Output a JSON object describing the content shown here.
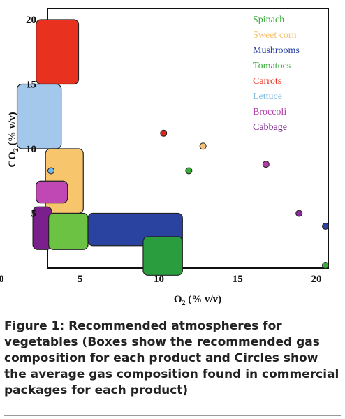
{
  "chart_data": {
    "type": "scatter",
    "title": "",
    "xlabel": "O",
    "xlabel_sub": "2",
    "xlabel_suffix": " (% v/v)",
    "ylabel": "CO",
    "ylabel_sub": "2",
    "ylabel_suffix": " (% v/v)",
    "xlim": [
      0,
      21
    ],
    "ylim": [
      0,
      20
    ],
    "x_ticks": [
      0,
      5,
      10,
      15,
      20
    ],
    "y_ticks": [
      5,
      10,
      15,
      20
    ],
    "grid": false,
    "legend_position": "top-right",
    "legend": [
      {
        "name": "Spinach",
        "color": "#3aaa3a"
      },
      {
        "name": "Sweet corn",
        "color": "#f5c06a"
      },
      {
        "name": "Mushrooms",
        "color": "#2a43a0"
      },
      {
        "name": "Tomatoes",
        "color": "#3aaa3a"
      },
      {
        "name": "Carrots",
        "color": "#e8321f"
      },
      {
        "name": "Lettuce",
        "color": "#7fb8e0"
      },
      {
        "name": "Broccoli",
        "color": "#b03ca8"
      },
      {
        "name": "Cabbage",
        "color": "#7a1f8c"
      }
    ],
    "boxes": [
      {
        "product": "Carrots",
        "o2": [
          2.2,
          4.9
        ],
        "co2": [
          15,
          20
        ],
        "color": "#e8321f"
      },
      {
        "product": "Lettuce",
        "o2": [
          1,
          3.8
        ],
        "co2": [
          10,
          15
        ],
        "color": "#a4c8ec"
      },
      {
        "product": "Sweet corn",
        "o2": [
          2.8,
          5.2
        ],
        "co2": [
          5,
          10
        ],
        "color": "#f7c66c"
      },
      {
        "product": "Broccoli",
        "o2": [
          2.2,
          4.2
        ],
        "co2": [
          5.8,
          7.5
        ],
        "color": "#bf48b4"
      },
      {
        "product": "Cabbage",
        "o2": [
          2,
          3.2
        ],
        "co2": [
          2.2,
          5.5
        ],
        "color": "#7a1f8c"
      },
      {
        "product": "Tomatoes",
        "o2": [
          3,
          5.5
        ],
        "co2": [
          2.2,
          5
        ],
        "color": "#6cc242"
      },
      {
        "product": "Mushrooms",
        "o2": [
          5.5,
          11.5
        ],
        "co2": [
          2.5,
          5
        ],
        "color": "#2a43a0"
      },
      {
        "product": "Spinach",
        "o2": [
          9,
          11.5
        ],
        "co2": [
          0.2,
          3.2
        ],
        "color": "#2a9e3e"
      }
    ],
    "points": [
      {
        "product": "Lettuce",
        "x": 0.6,
        "y": 8.3,
        "color": "#6fb6e6"
      },
      {
        "product": "Carrots",
        "x": 10.3,
        "y": 11.2,
        "color": "#e0221a"
      },
      {
        "product": "Sweet corn",
        "x": 12.8,
        "y": 10.2,
        "color": "#f3c07a"
      },
      {
        "product": "Spinach",
        "x": 11.9,
        "y": 8.3,
        "color": "#3aaa3a"
      },
      {
        "product": "Broccoli",
        "x": 16.8,
        "y": 8.8,
        "color": "#b03ca8"
      },
      {
        "product": "Cabbage",
        "x": 18.9,
        "y": 5,
        "color": "#8a2a9c"
      },
      {
        "product": "Mushrooms",
        "x": 21.9,
        "y": 4,
        "color": "#2a43a0"
      },
      {
        "product": "Tomatoes",
        "x": 23.4,
        "y": 0.3,
        "color": "#3aaa3a"
      }
    ]
  },
  "caption": "Figure 1: Recommended atmospheres for vegetables (Boxes show the recommended gas composition for each product and Circles show the average gas composition found in commercial packages for each product)"
}
